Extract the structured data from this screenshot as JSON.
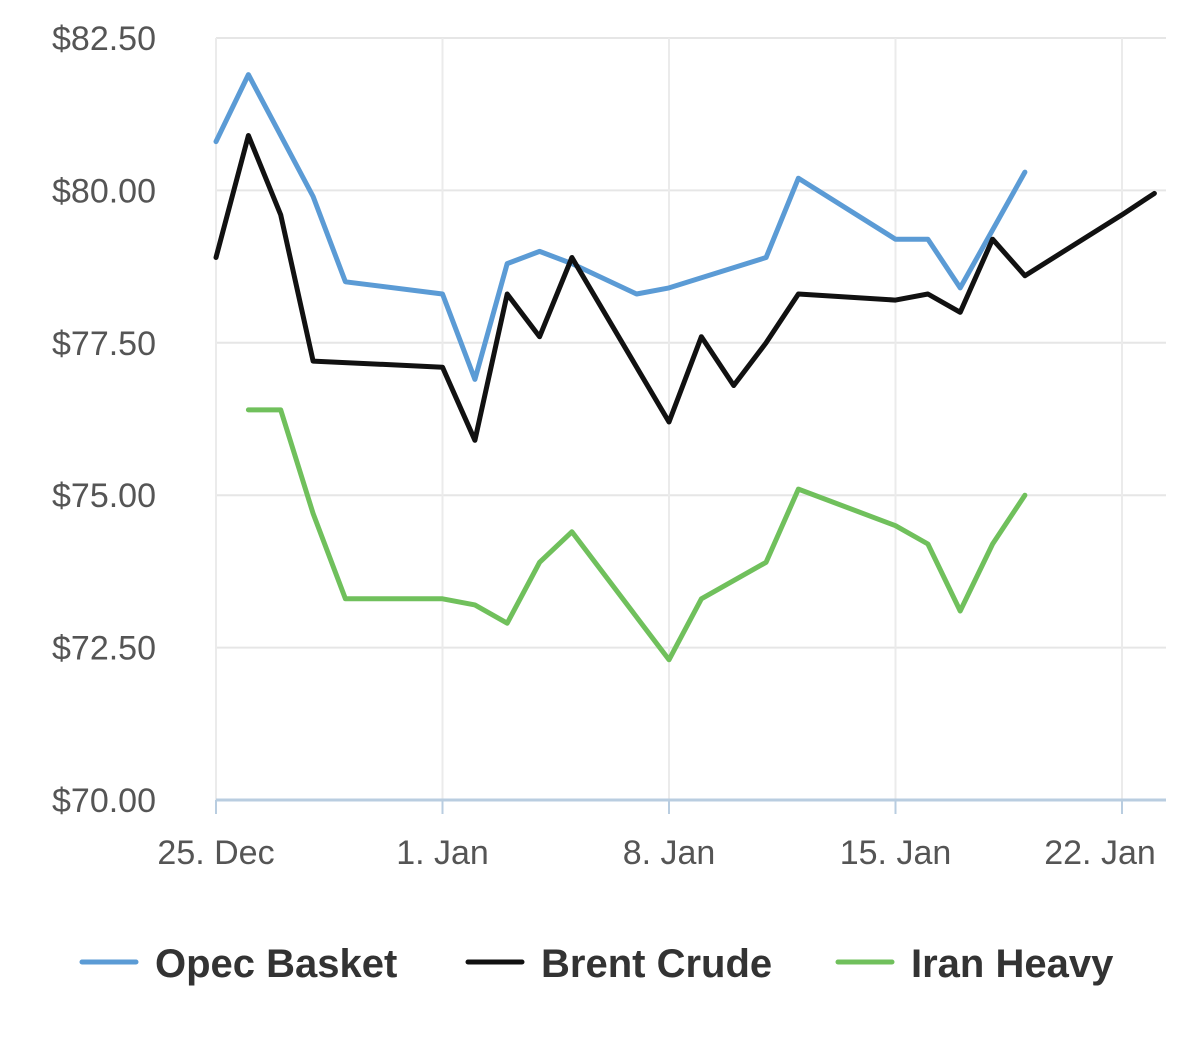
{
  "chart_data": {
    "type": "line",
    "title": "",
    "xlabel": "",
    "ylabel": "",
    "ylim": [
      70,
      83
    ],
    "yticks": [
      70,
      72.5,
      75,
      77.5,
      80,
      82.5
    ],
    "ytick_labels": [
      "$70.00",
      "$72.50",
      "$75.00",
      "$77.50",
      "$80.00",
      "$82.50"
    ],
    "xlim": [
      "2017-12-25",
      "2018-01-23"
    ],
    "xticks": [
      "2017-12-25",
      "2018-01-01",
      "2018-01-08",
      "2018-01-15",
      "2018-01-22"
    ],
    "xtick_labels": [
      "25. Dec",
      "1. Jan",
      "8. Jan",
      "15. Jan",
      "22. Jan"
    ],
    "grid": true,
    "legend_position": "bottom",
    "series": [
      {
        "name": "Opec Basket",
        "color": "#5b9bd5",
        "points": [
          [
            "2017-12-25",
            80.8
          ],
          [
            "2017-12-26",
            81.9
          ],
          [
            "2017-12-28",
            79.9
          ],
          [
            "2017-12-29",
            78.5
          ],
          [
            "2018-01-01",
            78.3
          ],
          [
            "2018-01-02",
            76.9
          ],
          [
            "2018-01-03",
            78.8
          ],
          [
            "2018-01-04",
            79.0
          ],
          [
            "2018-01-05",
            78.8
          ],
          [
            "2018-01-07",
            78.3
          ],
          [
            "2018-01-08",
            78.4
          ],
          [
            "2018-01-11",
            78.9
          ],
          [
            "2018-01-12",
            80.2
          ],
          [
            "2018-01-15",
            79.2
          ],
          [
            "2018-01-16",
            79.2
          ],
          [
            "2018-01-17",
            78.4
          ],
          [
            "2018-01-19",
            80.3
          ]
        ]
      },
      {
        "name": "Brent Crude",
        "color": "#111111",
        "points": [
          [
            "2017-12-25",
            78.9
          ],
          [
            "2017-12-26",
            80.9
          ],
          [
            "2017-12-27",
            79.6
          ],
          [
            "2017-12-28",
            77.2
          ],
          [
            "2018-01-01",
            77.1
          ],
          [
            "2018-01-02",
            75.9
          ],
          [
            "2018-01-03",
            78.3
          ],
          [
            "2018-01-04",
            77.6
          ],
          [
            "2018-01-05",
            78.9
          ],
          [
            "2018-01-08",
            76.2
          ],
          [
            "2018-01-09",
            77.6
          ],
          [
            "2018-01-10",
            76.8
          ],
          [
            "2018-01-11",
            77.5
          ],
          [
            "2018-01-12",
            78.3
          ],
          [
            "2018-01-15",
            78.2
          ],
          [
            "2018-01-16",
            78.3
          ],
          [
            "2018-01-17",
            78.0
          ],
          [
            "2018-01-18",
            79.2
          ],
          [
            "2018-01-19",
            78.6
          ],
          [
            "2018-01-22",
            79.6
          ],
          [
            "2018-01-23",
            79.95
          ]
        ]
      },
      {
        "name": "Iran Heavy",
        "color": "#70c05c",
        "points": [
          [
            "2017-12-26",
            76.4
          ],
          [
            "2017-12-27",
            76.4
          ],
          [
            "2017-12-28",
            74.7
          ],
          [
            "2017-12-29",
            73.3
          ],
          [
            "2018-01-01",
            73.3
          ],
          [
            "2018-01-02",
            73.2
          ],
          [
            "2018-01-03",
            72.9
          ],
          [
            "2018-01-04",
            73.9
          ],
          [
            "2018-01-05",
            74.4
          ],
          [
            "2018-01-08",
            72.3
          ],
          [
            "2018-01-09",
            73.3
          ],
          [
            "2018-01-11",
            73.9
          ],
          [
            "2018-01-12",
            75.1
          ],
          [
            "2018-01-15",
            74.5
          ],
          [
            "2018-01-16",
            74.2
          ],
          [
            "2018-01-17",
            73.1
          ],
          [
            "2018-01-18",
            74.2
          ],
          [
            "2018-01-19",
            75.0
          ]
        ]
      }
    ]
  },
  "legend": {
    "items": [
      {
        "label": "Opec Basket",
        "color": "#5b9bd5"
      },
      {
        "label": "Brent Crude",
        "color": "#111111"
      },
      {
        "label": "Iran Heavy",
        "color": "#70c05c"
      }
    ]
  }
}
